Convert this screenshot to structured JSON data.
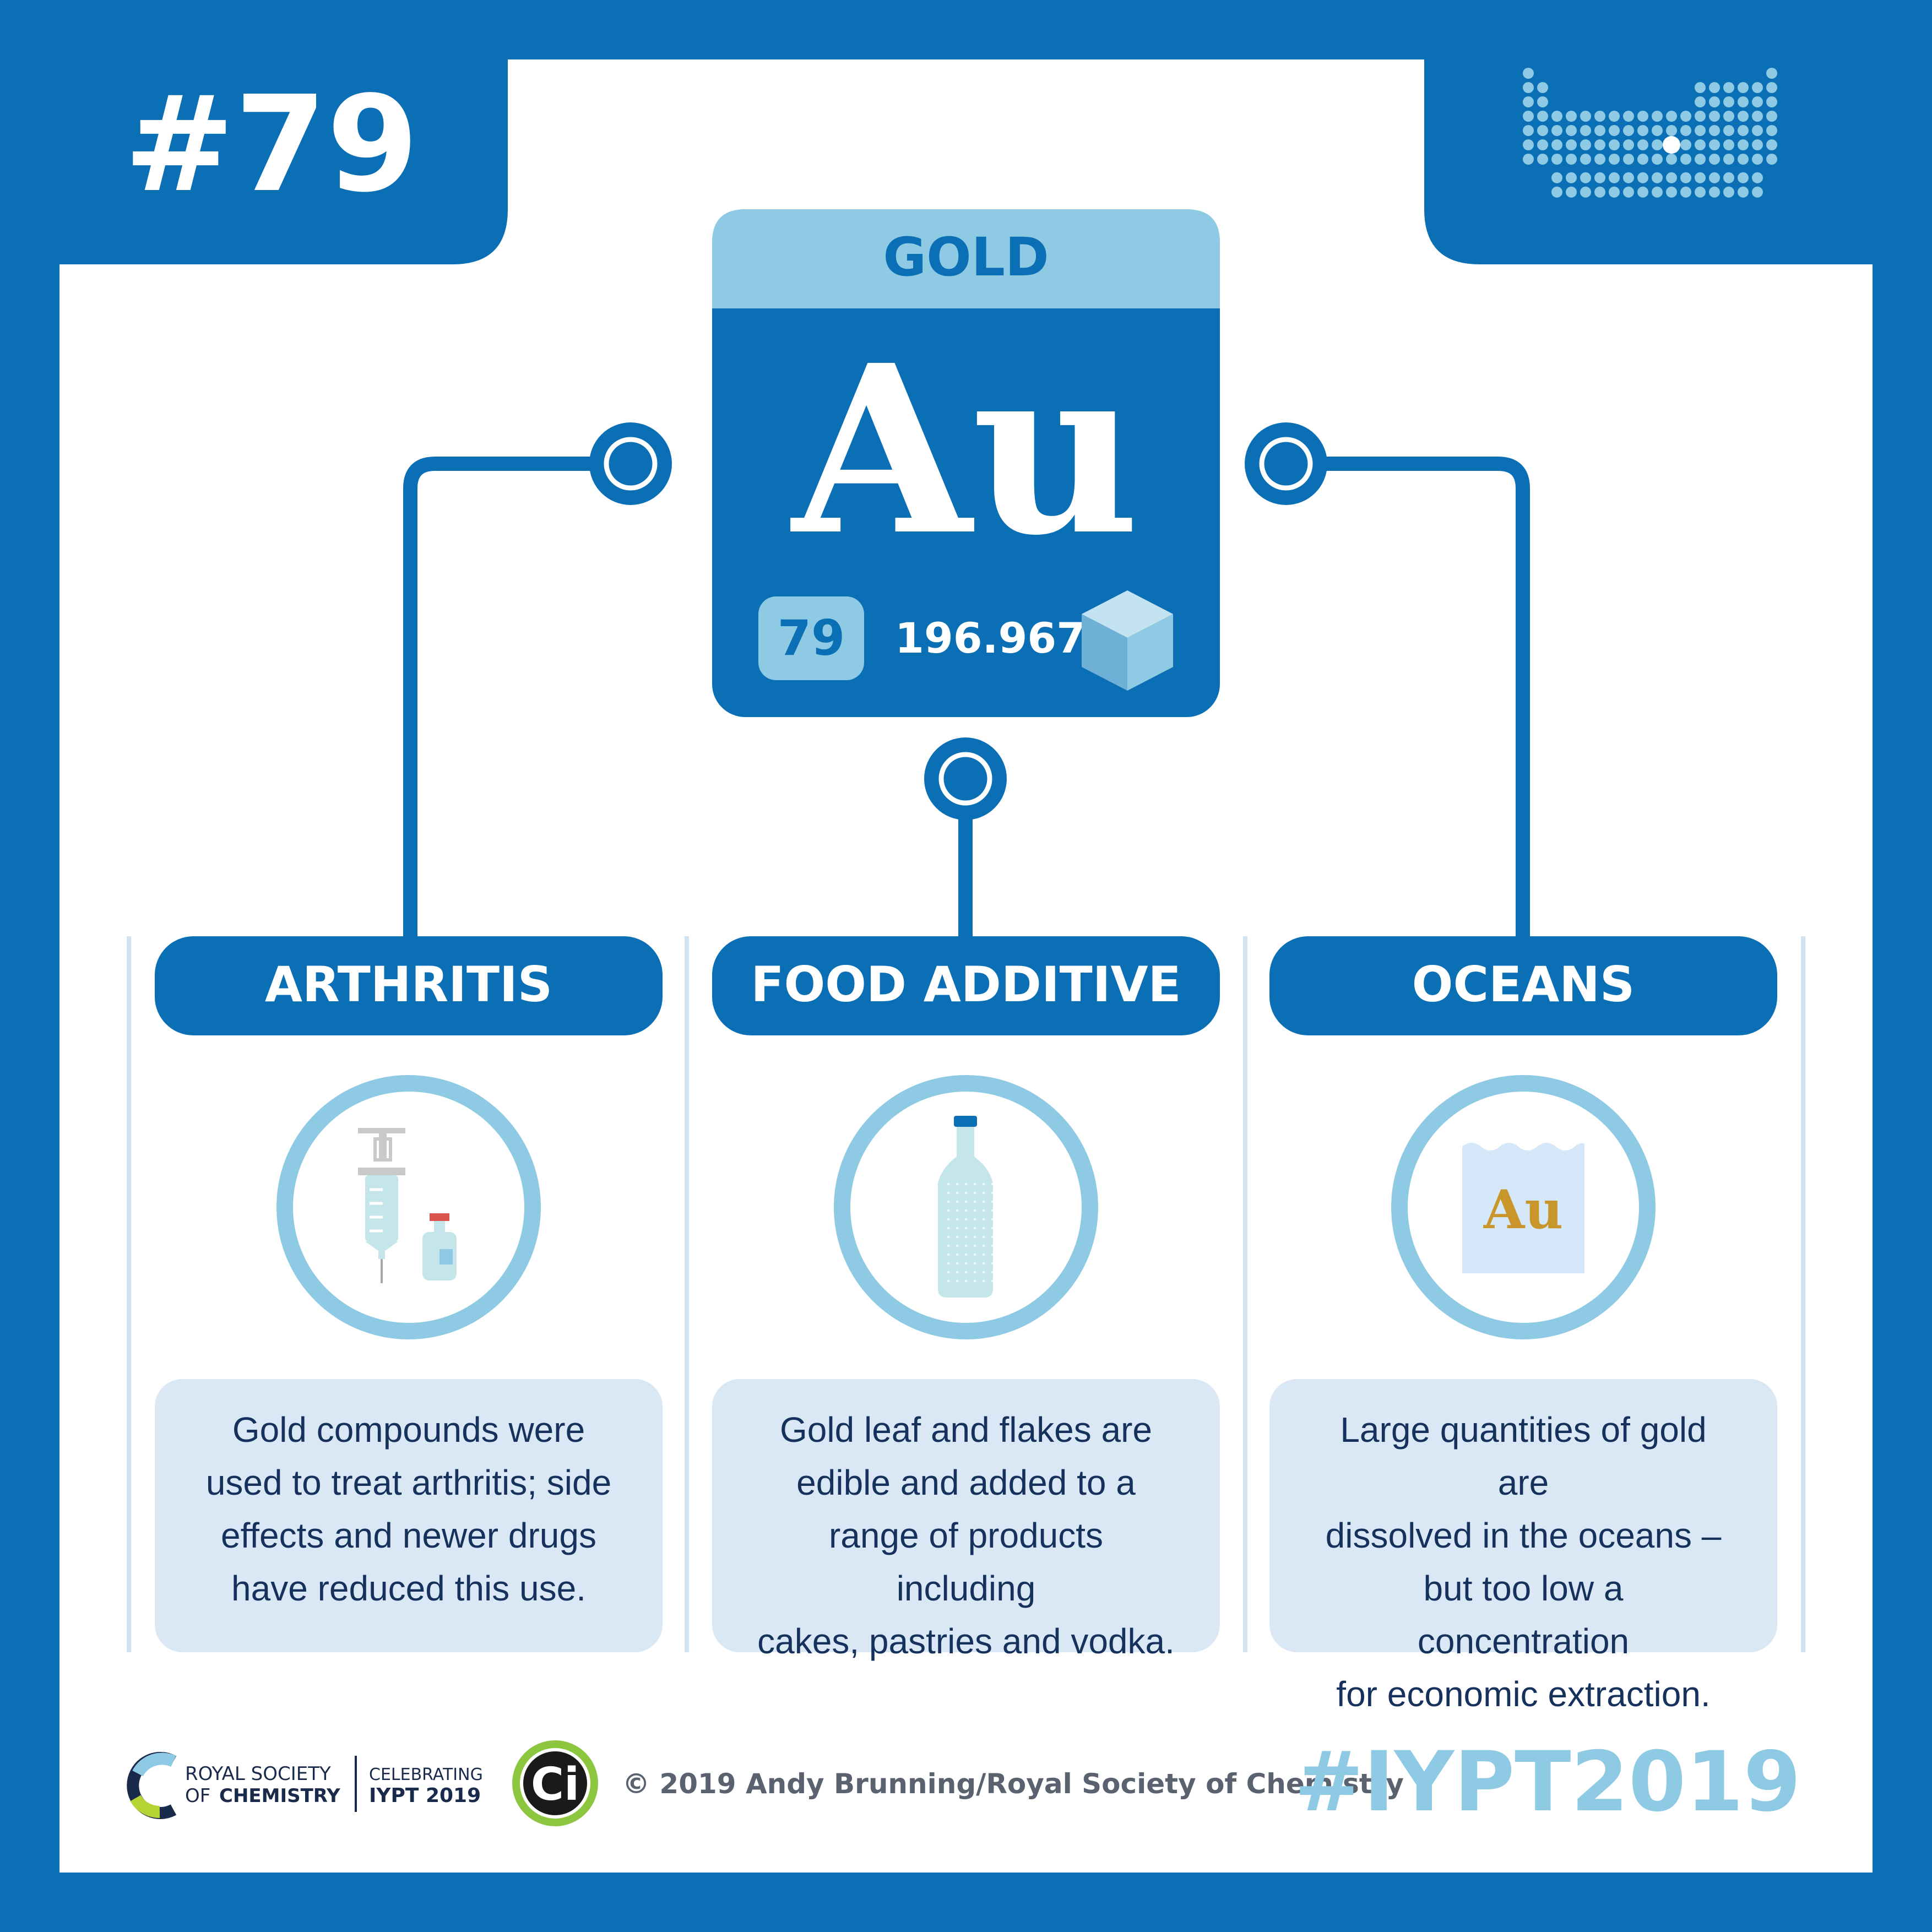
{
  "badge": {
    "number": "#79"
  },
  "element": {
    "name": "GOLD",
    "symbol": "Au",
    "atomic_number": "79",
    "atomic_mass": "196.967"
  },
  "uses": [
    {
      "title": "ARTHRITIS",
      "icon": "syringe-vial-icon",
      "lines": [
        "Gold compounds were",
        "used to treat arthritis; side",
        "effects and newer drugs",
        "have reduced this use."
      ]
    },
    {
      "title": "FOOD ADDITIVE",
      "icon": "bottle-icon",
      "lines": [
        "Gold leaf and flakes are",
        "edible and added to a",
        "range of products including",
        "cakes, pastries and vodka."
      ]
    },
    {
      "title": "OCEANS",
      "icon": "ocean-water-icon",
      "icon_label": "Au",
      "lines": [
        "Large quantities of gold are",
        "dissolved in the oceans –",
        "but too low a concentration",
        "for economic extraction."
      ]
    }
  ],
  "footer": {
    "rsc_line1": "ROYAL SOCIETY",
    "rsc_line2a": "OF",
    "rsc_line2b": "CHEMISTRY",
    "celebrating": "CELEBRATING",
    "iypt": "IYPT 2019",
    "ci": "Ci",
    "copyright": "© 2019 Andy Brunning/Royal Society of Chemistry",
    "hashtag": "#IYPT2019"
  },
  "colors": {
    "dark_blue": "#0a6fb5",
    "light_blue": "#8ecae3",
    "pale_blue": "#d5e8f5",
    "gold": "#c9962b",
    "white": "#ffffff"
  }
}
